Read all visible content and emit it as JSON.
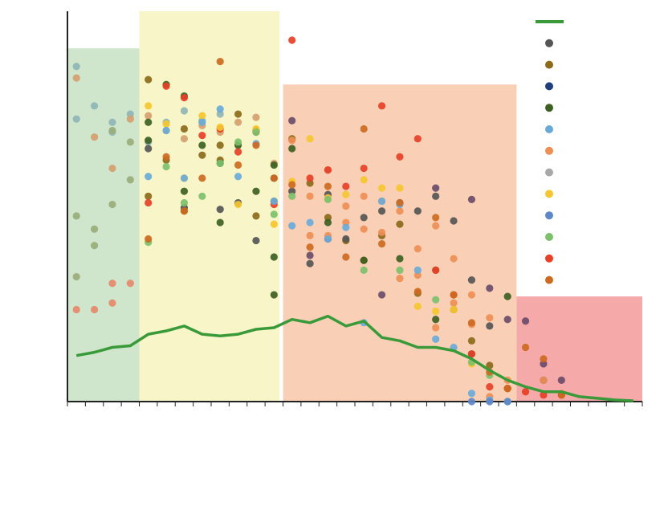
{
  "colors": {
    "axis": "#222222",
    "line": "#3a9a3a",
    "band_green": "#cfe6cc",
    "band_yellow": "#f8f6c8",
    "band_orange": "#f9d0b6",
    "band_red": "#f5a9a9"
  },
  "chart_data": {
    "type": "scatter",
    "title": "",
    "xlabel": "",
    "ylabel": "",
    "xlim": [
      0,
      32
    ],
    "ylim": [
      0,
      22
    ],
    "grid": false,
    "legend_placement": "top-right",
    "legend": [
      {
        "kind": "line",
        "color": "#3a9a3a",
        "label": ""
      },
      {
        "kind": "point",
        "color": "#555555",
        "label": ""
      },
      {
        "kind": "point",
        "color": "#8b6a1a",
        "label": ""
      },
      {
        "kind": "point",
        "color": "#1f3f7a",
        "label": ""
      },
      {
        "kind": "point",
        "color": "#3e5f22",
        "label": ""
      },
      {
        "kind": "point",
        "color": "#6aaad8",
        "label": ""
      },
      {
        "kind": "point",
        "color": "#ee8e55",
        "label": ""
      },
      {
        "kind": "point",
        "color": "#a8a8a8",
        "label": ""
      },
      {
        "kind": "point",
        "color": "#f5c630",
        "label": ""
      },
      {
        "kind": "point",
        "color": "#5f87c8",
        "label": ""
      },
      {
        "kind": "point",
        "color": "#7cc06c",
        "label": ""
      },
      {
        "kind": "point",
        "color": "#e64028",
        "label": ""
      },
      {
        "kind": "point",
        "color": "#cc6a22",
        "label": ""
      }
    ],
    "bands": [
      {
        "x0": 0,
        "x1": 4,
        "top": 21.5,
        "color": "#cfe6cc"
      },
      {
        "x0": 4,
        "x1": 11.8,
        "top": 24,
        "color": "#f8f6c8"
      },
      {
        "x0": 12,
        "x1": 25,
        "top": 19.3,
        "color": "#f9d0b6"
      },
      {
        "x0": 25,
        "x1": 32,
        "top": 6.4,
        "color": "#f5a9a9"
      }
    ],
    "line": {
      "x": [
        0.5,
        1.5,
        2.5,
        3.5,
        4.5,
        5.5,
        6.5,
        7.5,
        8.5,
        9.5,
        10.5,
        11.5,
        12.5,
        13.5,
        14.5,
        15.5,
        16.5,
        17.5,
        18.5,
        19.5,
        20.5,
        21.5,
        22.5,
        23.5,
        24.5,
        25.5,
        26.5,
        27.5,
        28.5,
        29.5,
        30.5,
        31.5
      ],
      "y": [
        2.8,
        3.0,
        3.3,
        3.4,
        4.1,
        4.3,
        4.6,
        4.1,
        4.0,
        4.1,
        4.4,
        4.5,
        5.0,
        4.8,
        5.2,
        4.6,
        4.9,
        3.9,
        3.7,
        3.3,
        3.3,
        3.1,
        2.6,
        1.9,
        1.3,
        0.9,
        0.6,
        0.6,
        0.3,
        0.2,
        0.1,
        0.05
      ]
    },
    "series": [
      {
        "color": "#8fb5b5",
        "x": [
          0.5,
          1.5,
          2.5,
          3.5,
          4.5,
          5.5,
          6.5,
          7.5,
          8.5,
          0.5,
          2.5
        ],
        "y": [
          20.4,
          18.0,
          17.0,
          17.5,
          15.8,
          17.0,
          17.7,
          17.1,
          17.5,
          17.2,
          16.4
        ]
      },
      {
        "color": "#d4a070",
        "x": [
          0.5,
          1.5,
          2.5,
          3.5,
          4.5,
          5.5,
          6.5,
          7.5,
          8.5,
          9.5,
          10.5,
          11.5
        ],
        "y": [
          19.7,
          16.1,
          14.2,
          17.2,
          17.4,
          16.5,
          16.0,
          16.8,
          16.4,
          17.0,
          17.3,
          14.5
        ]
      },
      {
        "color": "#9aad7a",
        "x": [
          0.5,
          1.5,
          2.5,
          3.5,
          0.5,
          1.5,
          3.5,
          2.5
        ],
        "y": [
          11.3,
          10.5,
          12.0,
          13.5,
          7.6,
          9.5,
          15.8,
          16.5
        ]
      },
      {
        "color": "#e58a6a",
        "x": [
          0.5,
          1.5,
          2.5,
          3.5,
          2.5
        ],
        "y": [
          5.6,
          5.6,
          6.0,
          7.2,
          7.2
        ]
      },
      {
        "color": "#8b6a1a",
        "x": [
          4.5,
          5.5,
          6.5,
          7.5,
          8.5,
          9.5,
          10.5,
          11.5,
          12.5,
          13.5,
          14.5,
          15.5,
          16.5,
          17.5,
          18.5,
          19.5,
          20.5,
          21.5,
          22.5,
          23.5,
          4.5,
          6.5,
          8.5
        ],
        "y": [
          19.6,
          14.7,
          16.6,
          15.0,
          15.6,
          17.5,
          11.3,
          12.2,
          16.0,
          13.3,
          11.2,
          9.8,
          8.6,
          10.1,
          10.8,
          6.6,
          8.0,
          5.6,
          3.7,
          2.2,
          12.5,
          11.6,
          14.7
        ]
      },
      {
        "color": "#3e5f22",
        "x": [
          4.5,
          5.5,
          6.5,
          7.5,
          8.5,
          9.5,
          10.5,
          11.5,
          4.5,
          6.5,
          8.5,
          10.5,
          11.5,
          12.5,
          14.5,
          16.5,
          18.5,
          20.5,
          22.5,
          24.5,
          11.5
        ],
        "y": [
          17.0,
          19.3,
          18.6,
          15.6,
          10.9,
          15.6,
          12.8,
          8.8,
          15.9,
          12.8,
          14.5,
          16.5,
          6.5,
          15.4,
          10.9,
          8.6,
          8.7,
          5.0,
          2.9,
          6.4,
          14.4
        ]
      },
      {
        "color": "#555555",
        "x": [
          4.5,
          6.5,
          8.5,
          9.5,
          10.5,
          11.5,
          12.5,
          13.5,
          14.5,
          15.5,
          16.5,
          17.5,
          18.5,
          19.5,
          20.5,
          21.5,
          22.5,
          23.5,
          24.5,
          26.5
        ],
        "y": [
          15.4,
          11.8,
          11.7,
          12.1,
          9.8,
          13.6,
          12.8,
          8.4,
          12.6,
          9.9,
          11.2,
          11.6,
          12.1,
          11.6,
          12.5,
          11.0,
          7.4,
          4.6,
          0.8,
          1.3
        ]
      },
      {
        "color": "#6b4c6a",
        "x": [
          12.5,
          13.5,
          14.5,
          17.5,
          20.5,
          22.5,
          23.5,
          24.5,
          25.5,
          26.5,
          27.5
        ],
        "y": [
          17.1,
          8.9,
          9.9,
          6.5,
          13.0,
          12.3,
          6.9,
          5.0,
          4.9,
          2.3,
          1.3
        ]
      },
      {
        "color": "#ee8e55",
        "x": [
          12.5,
          13.5,
          14.5,
          15.5,
          16.5,
          17.5,
          18.5,
          19.5,
          20.5,
          21.5,
          22.5,
          23.5,
          24.5,
          25.5,
          26.5,
          27.5,
          13.5,
          14.5,
          15.5,
          16.5,
          17.5,
          18.5,
          19.5,
          20.5,
          21.5,
          22.5,
          23.5
        ],
        "y": [
          15.9,
          12.5,
          14.1,
          11.9,
          12.5,
          12.2,
          11.6,
          7.7,
          4.5,
          6.0,
          4.7,
          0.3,
          1.3,
          0.6,
          1.3,
          0.5,
          10.1,
          10.1,
          10.9,
          10.5,
          10.3,
          7.5,
          9.3,
          10.7,
          8.7,
          6.5,
          5.1
        ]
      },
      {
        "color": "#e64028",
        "x": [
          4.5,
          5.5,
          6.5,
          7.5,
          8.5,
          9.5,
          10.5,
          11.5,
          12.5,
          13.5,
          14.5,
          15.5,
          16.5,
          17.5,
          18.5,
          19.5,
          20.5,
          21.5,
          22.5,
          23.5,
          24.5,
          25.5,
          26.5,
          27.5
        ],
        "y": [
          12.1,
          19.2,
          18.5,
          16.2,
          16.6,
          15.2,
          16.4,
          12.0,
          22.0,
          13.6,
          14.1,
          13.1,
          14.2,
          18.0,
          14.9,
          16.0,
          8.0,
          6.5,
          2.9,
          0.9,
          0.8,
          0.6,
          0.4,
          0.4
        ]
      },
      {
        "color": "#f5c630",
        "x": [
          4.5,
          5.5,
          6.5,
          7.5,
          8.5,
          9.5,
          10.5,
          11.5,
          12.5,
          13.5,
          14.5,
          15.5,
          16.5,
          17.5,
          18.5,
          19.5,
          20.5,
          21.5,
          22.5
        ],
        "y": [
          18.0,
          16.9,
          13.6,
          17.4,
          16.7,
          12.0,
          16.6,
          10.8,
          13.4,
          16.0,
          12.4,
          12.6,
          13.5,
          13.0,
          13.0,
          5.8,
          5.5,
          5.6,
          2.3
        ]
      },
      {
        "color": "#7cc06c",
        "x": [
          4.5,
          5.5,
          6.5,
          7.5,
          8.5,
          9.5,
          10.5,
          11.5,
          12.5,
          14.5,
          16.5,
          18.5,
          20.5,
          22.5,
          23.5
        ],
        "y": [
          9.7,
          14.3,
          12.1,
          12.5,
          14.5,
          15.8,
          16.4,
          11.4,
          12.5,
          12.3,
          8.0,
          8.0,
          6.2,
          2.4,
          1.6
        ]
      },
      {
        "color": "#6aaad8",
        "x": [
          4.5,
          5.5,
          6.5,
          7.5,
          8.5,
          9.5,
          10.5,
          11.5,
          12.5,
          13.5,
          14.5,
          15.5,
          16.5,
          17.5,
          18.5,
          19.5,
          20.5,
          21.5,
          22.5,
          23.5,
          24.5
        ],
        "y": [
          13.7,
          16.5,
          13.6,
          17.0,
          17.8,
          13.7,
          15.7,
          12.2,
          10.7,
          10.9,
          9.9,
          10.6,
          4.8,
          12.2,
          12.0,
          8.0,
          3.8,
          3.3,
          0.5,
          0.1,
          0.0
        ]
      },
      {
        "color": "#5f87c8",
        "x": [
          22.5,
          23.5,
          24.5
        ],
        "y": [
          0.0,
          0.0,
          0.0
        ]
      },
      {
        "color": "#cc6a22",
        "x": [
          4.5,
          5.5,
          6.5,
          7.5,
          8.5,
          9.5,
          10.5,
          11.5,
          12.5,
          13.5,
          14.5,
          15.5,
          16.5,
          17.5,
          18.5,
          19.5,
          20.5,
          21.5,
          22.5,
          23.5,
          24.5,
          25.5,
          26.5,
          27.5
        ],
        "y": [
          9.9,
          14.9,
          11.6,
          13.6,
          20.7,
          14.4,
          15.6,
          13.6,
          13.2,
          9.4,
          13.1,
          8.8,
          16.6,
          9.6,
          12.1,
          6.7,
          11.2,
          6.5,
          4.8,
          1.8,
          0.8,
          3.3,
          2.6,
          0.4
        ]
      }
    ]
  }
}
